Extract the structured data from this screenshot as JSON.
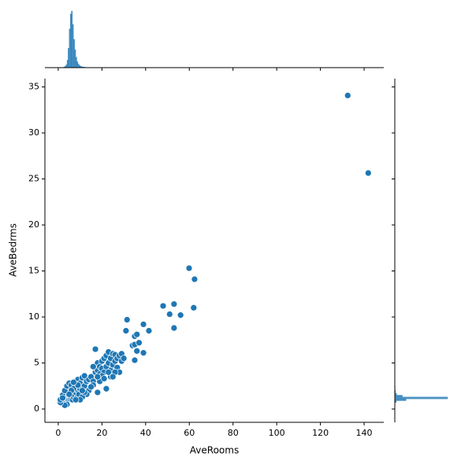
{
  "chart_data": {
    "type": "scatter",
    "x_label": "AveRooms",
    "y_label": "AveBedrms",
    "color": "#1f77b4",
    "x": [
      2,
      2.5,
      3,
      3.5,
      4,
      4.5,
      5,
      5.5,
      6,
      6.5,
      7,
      7.5,
      8,
      8.5,
      9,
      9.5,
      10,
      2,
      3,
      4,
      5,
      6,
      7,
      8,
      9,
      10,
      11,
      12,
      12,
      13,
      14,
      15,
      16,
      17,
      17,
      18,
      18,
      19,
      19,
      20,
      20,
      21,
      21,
      22,
      22,
      23,
      23,
      24,
      24,
      25,
      25,
      26,
      26,
      27,
      27,
      28,
      28,
      29,
      29,
      30,
      17,
      16,
      14,
      13,
      11,
      12,
      18,
      22,
      15,
      20,
      19,
      21,
      24,
      26,
      16,
      18,
      10,
      11,
      9,
      7,
      6,
      5,
      4,
      3,
      1,
      1,
      2,
      8,
      23,
      25,
      31,
      31.5,
      34,
      35,
      35,
      35,
      36,
      36,
      37,
      39,
      39,
      41.5,
      48,
      51,
      53,
      53,
      56,
      59.9,
      62,
      62.4,
      132.5,
      141.9
    ],
    "y": [
      0.6,
      0.9,
      1.0,
      0.8,
      1.1,
      1.0,
      1.05,
      1.1,
      1.2,
      1.0,
      1.3,
      1.5,
      1.8,
      1.2,
      2.0,
      1.6,
      2.2,
      1.5,
      2.0,
      2.5,
      2.8,
      2.6,
      2.2,
      3.0,
      3.2,
      2.8,
      3.4,
      2.5,
      3.6,
      3.0,
      3.2,
      3.5,
      3.0,
      4.0,
      4.5,
      4.2,
      5.0,
      4.6,
      3.8,
      5.2,
      4.4,
      4.0,
      5.5,
      5.8,
      4.6,
      6.2,
      5.0,
      5.5,
      4.2,
      6.0,
      4.8,
      5.2,
      5.9,
      4.5,
      5.5,
      5.8,
      4.0,
      5.2,
      6.0,
      5.5,
      6.5,
      2.6,
      2.0,
      1.6,
      1.3,
      1.8,
      1.8,
      2.2,
      2.4,
      3.6,
      3.0,
      3.3,
      3.5,
      4.0,
      4.6,
      3.5,
      1.0,
      2.0,
      2.6,
      2.9,
      2.0,
      1.6,
      0.5,
      0.4,
      0.7,
      1.0,
      1.2,
      1.0,
      4.0,
      3.5,
      8.5,
      9.7,
      6.9,
      7.0,
      5.3,
      7.9,
      8.1,
      6.3,
      7.2,
      6.1,
      9.2,
      8.5,
      11.2,
      10.3,
      8.8,
      11.4,
      10.2,
      15.3,
      11.0,
      14.1,
      34.07,
      25.64
    ],
    "xlim": [
      -6.1,
      149
    ],
    "ylim": [
      -1.45,
      35.9
    ],
    "xticks": [
      0,
      20,
      40,
      60,
      80,
      100,
      120,
      140
    ],
    "yticks": [
      0,
      5,
      10,
      15,
      20,
      25,
      30,
      35
    ],
    "marginal_x": {
      "bins": [
        1,
        1.5,
        2,
        2.5,
        3,
        3.5,
        4,
        4.5,
        5,
        5.5,
        6,
        6.5,
        7,
        7.5,
        8,
        8.5,
        9,
        9.5,
        10,
        10.5,
        11,
        11.5,
        12,
        12.5
      ],
      "counts": [
        5,
        10,
        20,
        40,
        90,
        200,
        500,
        1300,
        2600,
        3600,
        3800,
        2900,
        1900,
        1200,
        700,
        400,
        250,
        150,
        100,
        70,
        50,
        40,
        30
      ],
      "countlim": [
        0,
        3800
      ]
    },
    "marginal_y": {
      "bins": [
        0.5,
        0.7,
        0.9,
        1.1,
        1.3,
        1.5,
        1.7,
        2.0,
        2.5,
        3.0
      ],
      "counts": [
        40,
        400,
        3000,
        14000,
        2000,
        500,
        200,
        100,
        50
      ],
      "countlim": [
        0,
        14000
      ]
    }
  }
}
